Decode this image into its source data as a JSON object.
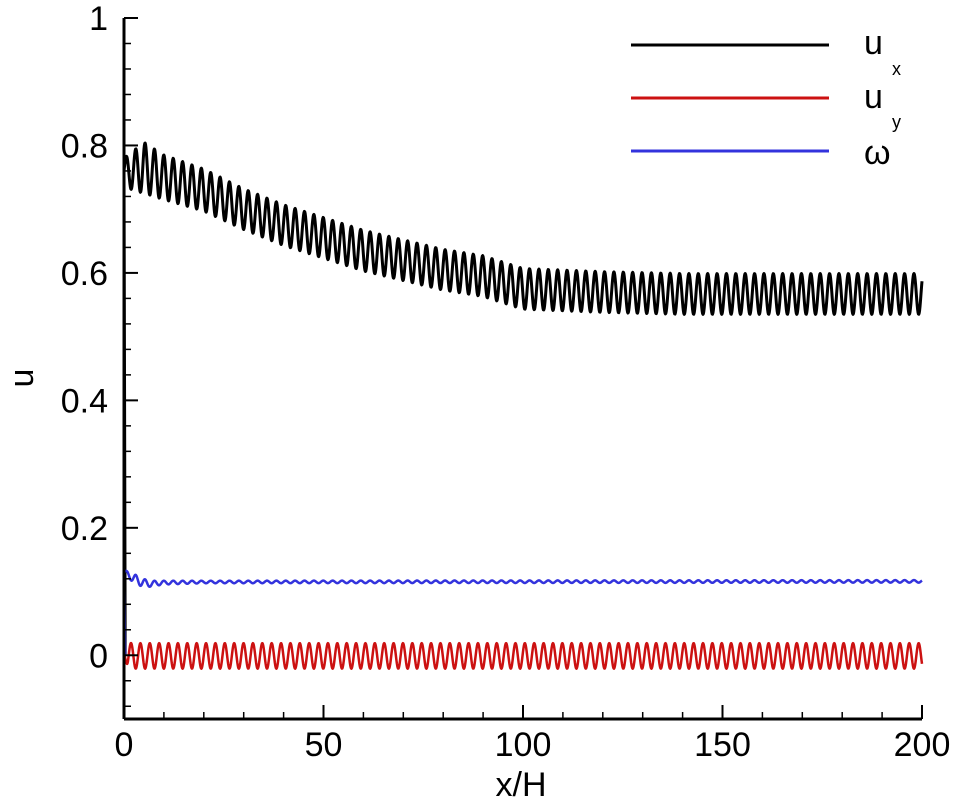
{
  "chart_data": {
    "type": "line",
    "xlabel": "x/H",
    "ylabel": "u",
    "xlim": [
      0,
      200
    ],
    "ylim": [
      -0.1,
      1.0
    ],
    "x_ticks": [
      0,
      50,
      100,
      150,
      200
    ],
    "x_tick_labels": [
      "0",
      "50",
      "100",
      "150",
      "200"
    ],
    "y_ticks": [
      0,
      0.2,
      0.4,
      0.6,
      0.8,
      1.0
    ],
    "y_tick_labels": [
      "0",
      "0.2",
      "0.4",
      "0.6",
      "0.8",
      "1"
    ],
    "grid": false,
    "legend_position": "top-right",
    "series": [
      {
        "name": "u",
        "subscript": "x",
        "color": "#000000",
        "description_points_x": [
          0,
          2,
          5,
          10,
          20,
          30,
          40,
          50,
          60,
          70,
          80,
          90,
          100,
          120,
          140,
          160,
          180,
          200
        ],
        "mean": [
          0.76,
          0.76,
          0.765,
          0.75,
          0.73,
          0.7,
          0.675,
          0.655,
          0.635,
          0.62,
          0.605,
          0.595,
          0.575,
          0.57,
          0.567,
          0.567,
          0.567,
          0.567
        ],
        "amplitude": [
          0.02,
          0.03,
          0.04,
          0.035,
          0.033,
          0.032,
          0.032,
          0.032,
          0.032,
          0.032,
          0.032,
          0.032,
          0.032,
          0.032,
          0.032,
          0.032,
          0.032,
          0.032
        ],
        "period": 2.35
      },
      {
        "name": "u",
        "subscript": "y",
        "color": "#cc1111",
        "description_points_x": [
          0,
          1,
          2,
          200
        ],
        "mean": [
          0.0,
          0.0,
          -0.001,
          -0.001
        ],
        "amplitude": [
          0.0,
          0.02,
          0.02,
          0.02
        ],
        "period": 2.35
      },
      {
        "name": "ω",
        "subscript": "",
        "color": "#3333dd",
        "description_points_x": [
          0,
          1,
          3,
          6,
          10,
          20,
          200
        ],
        "mean": [
          0.13,
          0.127,
          0.118,
          0.112,
          0.114,
          0.115,
          0.116
        ],
        "amplitude": [
          0.003,
          0.005,
          0.008,
          0.005,
          0.003,
          0.002,
          0.002
        ],
        "period": 2.35
      }
    ]
  }
}
